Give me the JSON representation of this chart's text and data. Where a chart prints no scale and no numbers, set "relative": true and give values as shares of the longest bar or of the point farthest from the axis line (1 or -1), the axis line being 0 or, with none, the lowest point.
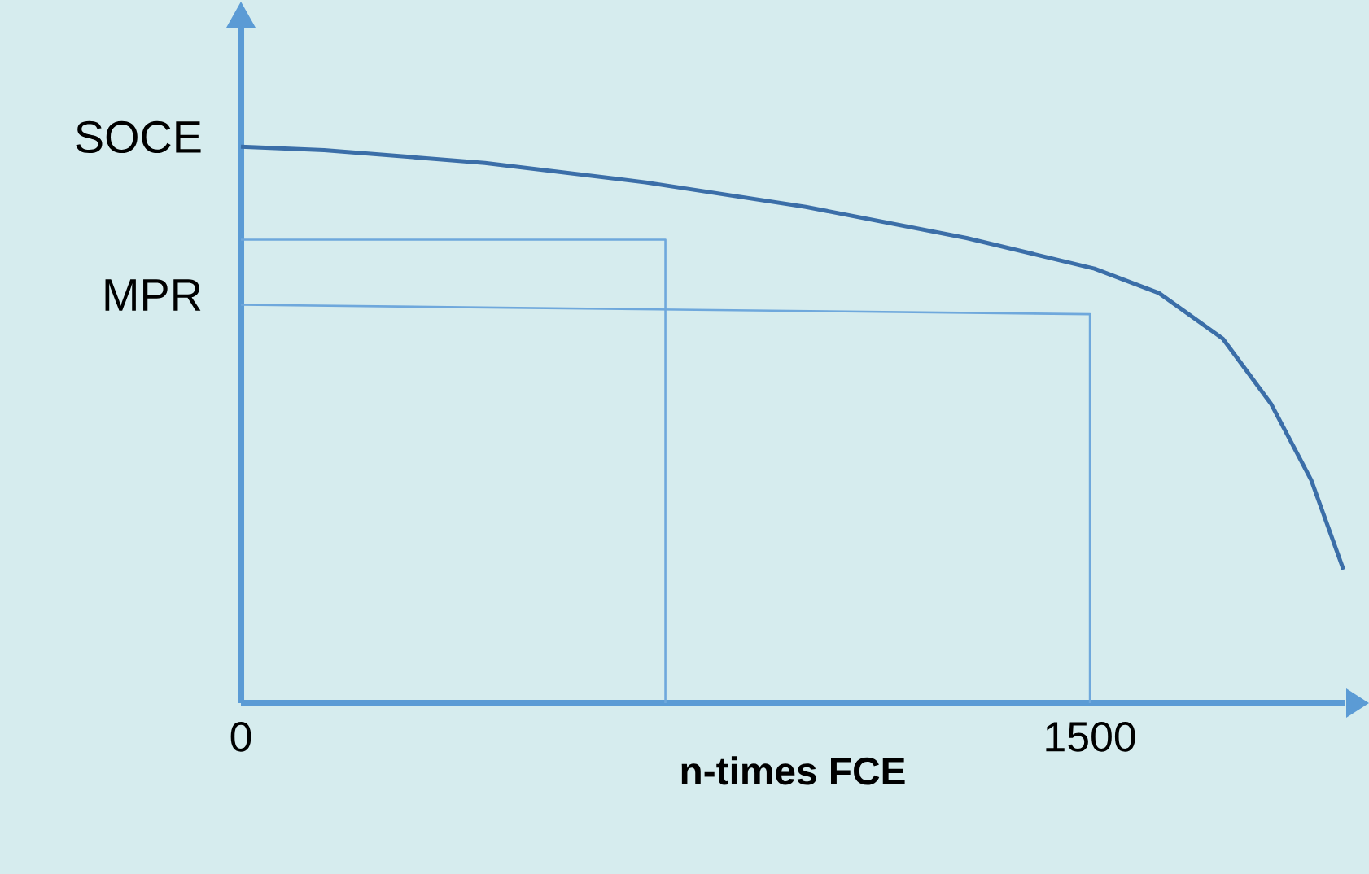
{
  "chart_data": {
    "type": "line",
    "xlabel": "n-times FCE",
    "relative": true,
    "xlim": [
      0,
      1950
    ],
    "xticks": [
      0,
      1500
    ],
    "tick_labels": "x",
    "series": [
      {
        "color": "#3b6ea8",
        "x": [
          0,
          147,
          431,
          715,
          998,
          1282,
          1508,
          1622,
          1735,
          1820,
          1891,
          1948
        ],
        "values": [
          1.0,
          0.994,
          0.971,
          0.936,
          0.892,
          0.836,
          0.781,
          0.737,
          0.655,
          0.538,
          0.401,
          0.24
        ]
      },
      {
        "color": "#6fa8dc",
        "x": [
          0,
          750,
          750
        ],
        "values": [
          0.833,
          0.833,
          0
        ]
      },
      {
        "color": "#6fa8dc",
        "x": [
          0,
          1500,
          1500
        ],
        "values": [
          0.716,
          0.699,
          0
        ]
      }
    ],
    "annotations": [
      {
        "text": "SOCE",
        "x": 0,
        "y": 1.0
      },
      {
        "text": "MPR",
        "x": 0,
        "y": 0.716
      }
    ]
  }
}
